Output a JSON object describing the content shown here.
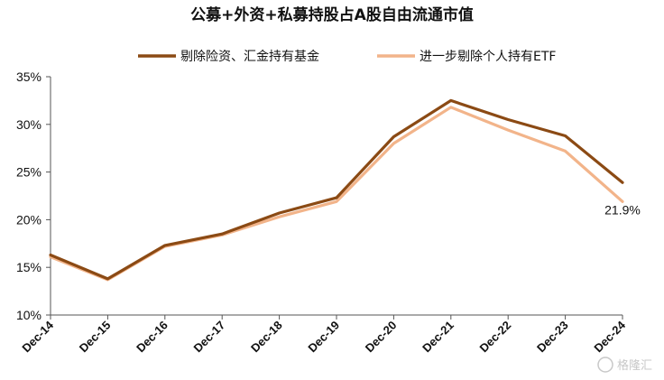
{
  "chart_data": {
    "type": "line",
    "title": "公募+外资+私募持股占A股自由流通市值",
    "categories": [
      "Dec-14",
      "Dec-15",
      "Dec-16",
      "Dec-17",
      "Dec-18",
      "Dec-19",
      "Dec-20",
      "Dec-21",
      "Dec-22",
      "Dec-23",
      "Dec-24"
    ],
    "series": [
      {
        "name": "剔除险资、汇金持有基金",
        "color": "#8B4A14",
        "values": [
          16.3,
          13.8,
          17.3,
          18.5,
          20.7,
          22.3,
          28.7,
          32.5,
          30.5,
          28.8,
          23.9
        ]
      },
      {
        "name": "进一步剔除个人持有ETF",
        "color": "#F2B48A",
        "values": [
          16.1,
          13.7,
          17.2,
          18.4,
          20.3,
          21.9,
          28.0,
          31.8,
          29.4,
          27.2,
          21.9
        ]
      }
    ],
    "ylim": [
      10,
      35
    ],
    "yticks": [
      10,
      15,
      20,
      25,
      30,
      35
    ],
    "ytick_labels": [
      "10%",
      "15%",
      "20%",
      "25%",
      "30%",
      "35%"
    ],
    "data_labels": [
      {
        "series": 1,
        "index": 10,
        "text": "21.9%"
      }
    ],
    "legend_position": "top",
    "grid": false
  },
  "watermark": "格隆汇"
}
